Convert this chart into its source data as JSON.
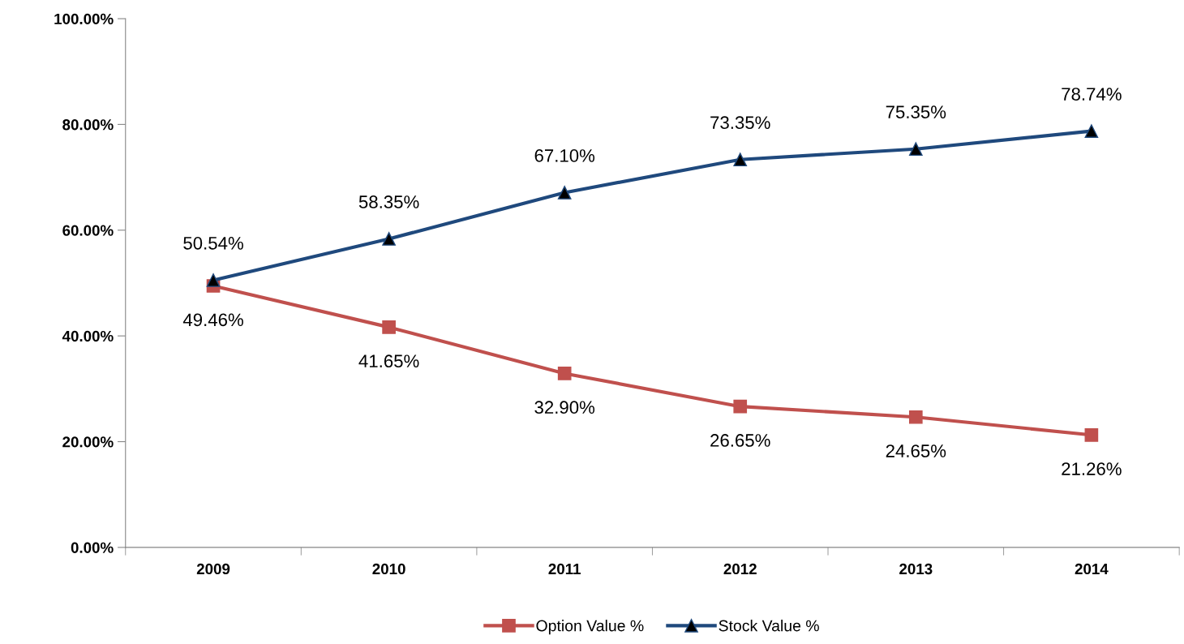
{
  "chart_data": {
    "type": "line",
    "categories": [
      "2009",
      "2010",
      "2011",
      "2012",
      "2013",
      "2014"
    ],
    "series": [
      {
        "name": "Option Value %",
        "color": "#c0504d",
        "marker": "square",
        "values": [
          49.46,
          41.65,
          32.9,
          26.65,
          24.65,
          21.26
        ],
        "value_labels": [
          "49.46%",
          "41.65%",
          "32.90%",
          "26.65%",
          "24.65%",
          "21.26%"
        ]
      },
      {
        "name": "Stock Value %",
        "color": "#1f497d",
        "marker": "triangle",
        "values": [
          50.54,
          58.35,
          67.1,
          73.35,
          75.35,
          78.74
        ],
        "value_labels": [
          "50.54%",
          "58.35%",
          "67.10%",
          "73.35%",
          "75.35%",
          "78.74%"
        ]
      }
    ],
    "ylim": [
      0,
      100
    ],
    "yticks": [
      {
        "value": 0,
        "label": "0.00%"
      },
      {
        "value": 20,
        "label": "20.00%"
      },
      {
        "value": 40,
        "label": "40.00%"
      },
      {
        "value": 60,
        "label": "60.00%"
      },
      {
        "value": 80,
        "label": "80.00%"
      },
      {
        "value": 100,
        "label": "100.00%"
      }
    ],
    "grid": false,
    "legend": "bottom",
    "line_style": "solid"
  }
}
